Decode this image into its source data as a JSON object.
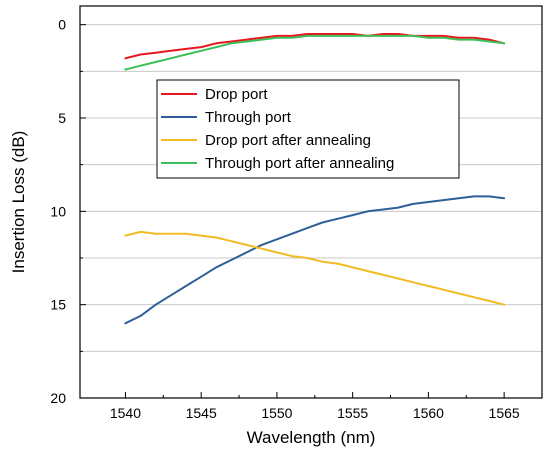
{
  "chart_data": {
    "type": "line",
    "title": "",
    "xlabel": "Wavelength (nm)",
    "ylabel": "Insertion Loss (dB)",
    "xlim": [
      1537,
      1567.5
    ],
    "ylim": [
      -1,
      20
    ],
    "y_inverted": true,
    "x_ticks": [
      1540,
      1545,
      1550,
      1555,
      1560,
      1565
    ],
    "x_tick_labels": [
      "1540",
      "1545",
      "1550",
      "1555",
      "1560",
      "1565"
    ],
    "y_ticks": [
      0,
      5,
      10,
      15,
      20
    ],
    "y_tick_labels": [
      "0",
      "5",
      "10",
      "15",
      "20"
    ],
    "grid": "horizontal",
    "legend_position": "center-right",
    "series": [
      {
        "name": "Drop port",
        "color": "#e8171e",
        "x": [
          1540,
          1541,
          1542,
          1543,
          1544,
          1545,
          1546,
          1547,
          1548,
          1549,
          1550,
          1551,
          1552,
          1553,
          1554,
          1555,
          1556,
          1557,
          1558,
          1559,
          1560,
          1561,
          1562,
          1563,
          1564,
          1565
        ],
        "y": [
          1.8,
          1.6,
          1.5,
          1.4,
          1.3,
          1.2,
          1.0,
          0.9,
          0.8,
          0.7,
          0.6,
          0.6,
          0.5,
          0.5,
          0.5,
          0.5,
          0.6,
          0.5,
          0.5,
          0.6,
          0.6,
          0.6,
          0.7,
          0.7,
          0.8,
          1.0
        ]
      },
      {
        "name": "Through port",
        "color": "#2e5f99",
        "x": [
          1540,
          1541,
          1542,
          1543,
          1544,
          1545,
          1546,
          1547,
          1548,
          1549,
          1550,
          1551,
          1552,
          1553,
          1554,
          1555,
          1556,
          1557,
          1558,
          1559,
          1560,
          1561,
          1562,
          1563,
          1564,
          1565
        ],
        "y": [
          16.0,
          15.6,
          15.0,
          14.5,
          14.0,
          13.5,
          13.0,
          12.6,
          12.2,
          11.8,
          11.5,
          11.2,
          10.9,
          10.6,
          10.4,
          10.2,
          10.0,
          9.9,
          9.8,
          9.6,
          9.5,
          9.4,
          9.3,
          9.2,
          9.2,
          9.3
        ]
      },
      {
        "name": "Drop port after annealing",
        "color": "#f2bb26",
        "x": [
          1540,
          1541,
          1542,
          1543,
          1544,
          1545,
          1546,
          1547,
          1548,
          1549,
          1550,
          1551,
          1552,
          1553,
          1554,
          1555,
          1556,
          1557,
          1558,
          1559,
          1560,
          1561,
          1562,
          1563,
          1564,
          1565
        ],
        "y": [
          11.3,
          11.1,
          11.2,
          11.2,
          11.2,
          11.3,
          11.4,
          11.6,
          11.8,
          12.0,
          12.2,
          12.4,
          12.5,
          12.7,
          12.8,
          13.0,
          13.2,
          13.4,
          13.6,
          13.8,
          14.0,
          14.2,
          14.4,
          14.6,
          14.8,
          15.0
        ]
      },
      {
        "name": "Through port after annealing",
        "color": "#3cbf58",
        "x": [
          1540,
          1541,
          1542,
          1543,
          1544,
          1545,
          1546,
          1547,
          1548,
          1549,
          1550,
          1551,
          1552,
          1553,
          1554,
          1555,
          1556,
          1557,
          1558,
          1559,
          1560,
          1561,
          1562,
          1563,
          1564,
          1565
        ],
        "y": [
          2.4,
          2.2,
          2.0,
          1.8,
          1.6,
          1.4,
          1.2,
          1.0,
          0.9,
          0.8,
          0.7,
          0.7,
          0.6,
          0.6,
          0.6,
          0.6,
          0.6,
          0.6,
          0.6,
          0.6,
          0.7,
          0.7,
          0.8,
          0.8,
          0.9,
          1.0
        ]
      }
    ]
  }
}
